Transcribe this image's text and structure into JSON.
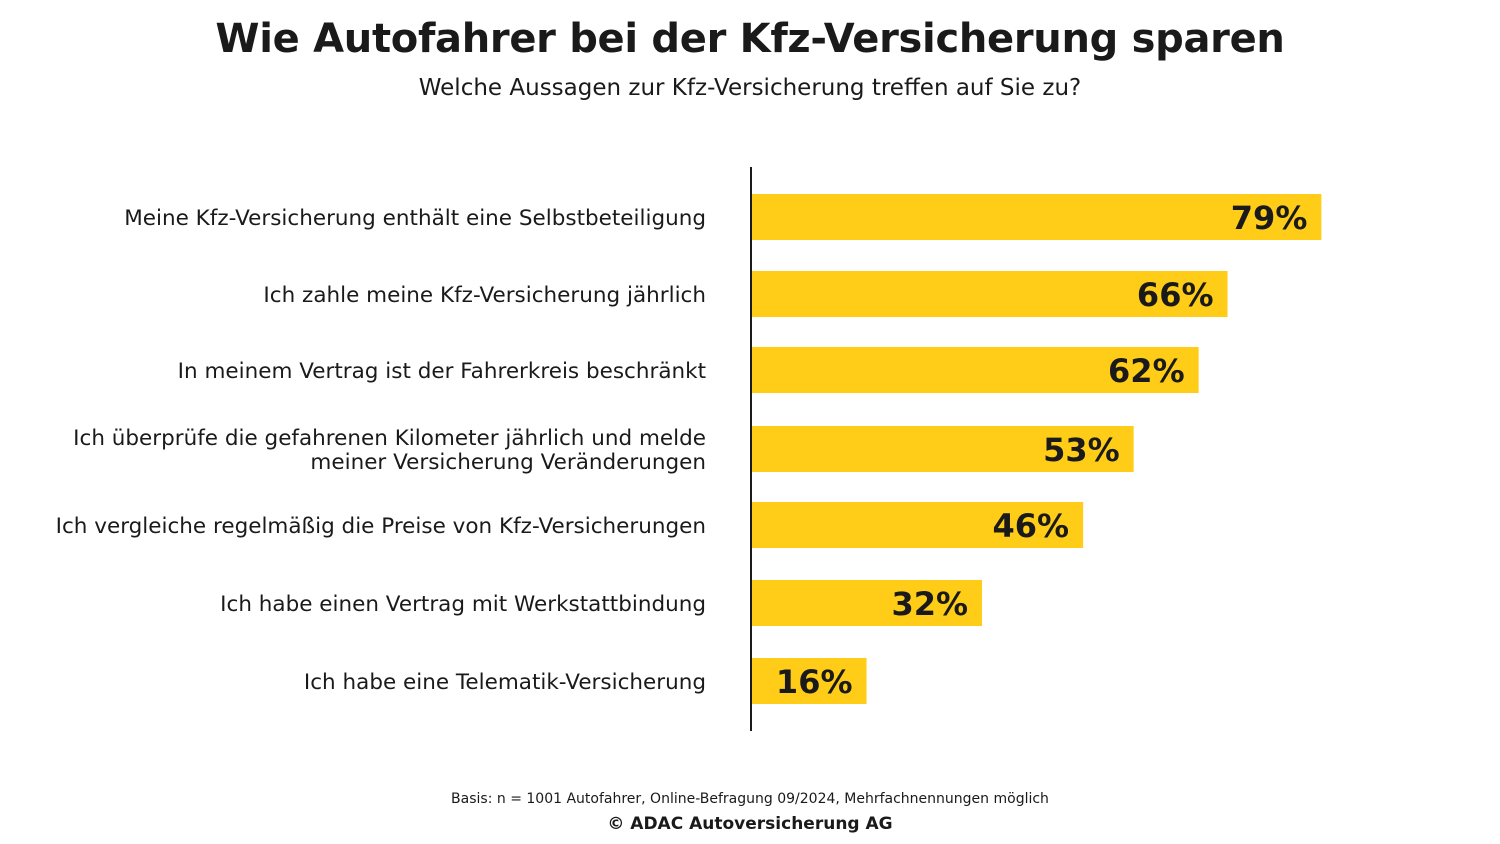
{
  "page": {
    "title": "Wie Autofahrer bei der Kfz-Versicherung sparen",
    "subtitle": "Welche Aussagen zur Kfz-Versicherung treffen auf Sie zu?",
    "footnote": "Basis: n = 1001 Autofahrer, Online-Befragung 09/2024, Mehrfachnennungen möglich",
    "copyright": "© ADAC Autoversicherung AG"
  },
  "chart_data": {
    "type": "bar",
    "orientation": "horizontal",
    "title": "Wie Autofahrer bei der Kfz-Versicherung sparen",
    "subtitle": "Welche Aussagen zur Kfz-Versicherung treffen auf Sie zu?",
    "categories": [
      [
        "Meine Kfz-Versicherung enthält eine Selbstbeteiligung"
      ],
      [
        "Ich zahle meine Kfz-Versicherung jährlich"
      ],
      [
        "In meinem Vertrag ist der Fahrerkreis beschränkt"
      ],
      [
        "Ich überprüfe die gefahrenen Kilometer jährlich und melde",
        "meiner Versicherung Veränderungen"
      ],
      [
        "Ich vergleiche regelmäßig die Preise von Kfz-Versicherungen"
      ],
      [
        "Ich habe einen Vertrag mit Werkstattbindung"
      ],
      [
        "Ich habe eine Telematik-Versicherung"
      ]
    ],
    "values": [
      79,
      66,
      62,
      53,
      46,
      32,
      16
    ],
    "value_labels": [
      "79%",
      "66%",
      "62%",
      "53%",
      "46%",
      "32%",
      "16%"
    ],
    "unit": "%",
    "xlim": [
      0,
      100
    ],
    "grid": false,
    "legend": "none",
    "colors": {
      "bar": "#FFCC17",
      "axis": "#1a1a1a",
      "text": "#1a1a1a"
    }
  }
}
